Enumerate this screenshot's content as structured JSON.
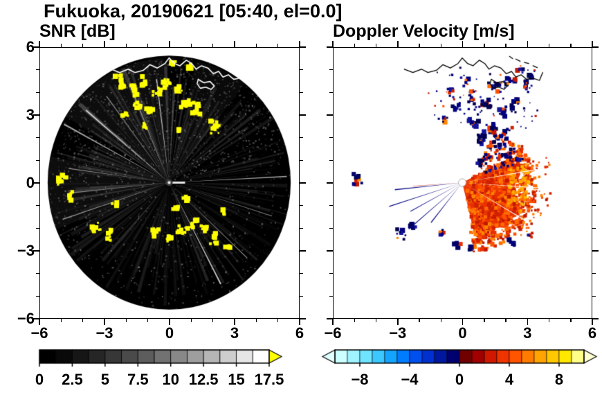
{
  "title": "Fukuoka, 20190621 [05:40, el=0.0]",
  "panels": [
    {
      "title": "SNR [dB]"
    },
    {
      "title": "Doppler Velocity [m/s]"
    }
  ],
  "chart_data": [
    {
      "type": "heatmap",
      "variant": "radar-ppi-scan",
      "title": "SNR [dB]",
      "x_range": [
        -6,
        6
      ],
      "y_range": [
        -6,
        6
      ],
      "x_ticks": [
        -6,
        -3,
        0,
        3,
        6
      ],
      "y_ticks": [
        6,
        3,
        0,
        -3,
        -6
      ],
      "x_tick_labels": [
        "−6",
        "−3",
        "0",
        "3",
        "6"
      ],
      "y_tick_labels": [
        "6",
        "3",
        "0",
        "−3",
        "−6"
      ],
      "minor_tick_step": 1,
      "scan_radius": 5.65,
      "scan_background_color": "#000000",
      "outside_color": "#ffffff",
      "colorbar": {
        "min": 0,
        "max": 17.5,
        "n_segments": 14,
        "tick_values": [
          0,
          2.5,
          5,
          7.5,
          10,
          12.5,
          15,
          17.5
        ],
        "tick_labels": [
          "0",
          "2.5",
          "5",
          "7.5",
          "10",
          "12.5",
          "15",
          "17.5"
        ],
        "colormap": "grayscale",
        "start_color": "#000000",
        "end_color": "#ffffff",
        "over_arrow_color": "#ffff00"
      },
      "bright_sectors_deg": [
        [
          80,
          165,
          85
        ],
        [
          55,
          80,
          45
        ],
        [
          165,
          210,
          55
        ],
        [
          210,
          250,
          20
        ],
        [
          -70,
          -40,
          18
        ],
        [
          -20,
          15,
          20
        ],
        [
          25,
          55,
          25
        ]
      ],
      "bright_ray_angles_deg": [
        -63,
        -44,
        -18,
        3,
        97,
        112,
        126,
        139,
        151,
        172,
        186,
        199
      ],
      "yellow_patch_color": "#ffff00",
      "yellow_clusters": [
        [
          -2.25,
          4.55,
          0.35,
          14
        ],
        [
          -1.6,
          4.15,
          0.3,
          10
        ],
        [
          -1.15,
          4.5,
          0.25,
          8
        ],
        [
          -0.6,
          4.05,
          0.3,
          10
        ],
        [
          -0.15,
          4.4,
          0.3,
          10
        ],
        [
          0.35,
          4.15,
          0.25,
          8
        ],
        [
          -1.5,
          3.45,
          0.3,
          9
        ],
        [
          -0.85,
          3.2,
          0.25,
          7
        ],
        [
          0.8,
          3.55,
          0.3,
          9
        ],
        [
          1.3,
          3.3,
          0.3,
          9
        ],
        [
          -2.05,
          3.05,
          0.2,
          5
        ],
        [
          2.1,
          2.5,
          0.35,
          12
        ],
        [
          0.2,
          5.3,
          0.2,
          5
        ],
        [
          1.0,
          5.15,
          0.15,
          4
        ],
        [
          -1.15,
          2.55,
          0.2,
          5
        ],
        [
          0.4,
          2.3,
          0.15,
          4
        ],
        [
          -4.95,
          0.2,
          0.3,
          10
        ],
        [
          -4.55,
          -0.55,
          0.25,
          6
        ],
        [
          -3.35,
          -2.0,
          0.3,
          9
        ],
        [
          -2.85,
          -2.35,
          0.25,
          7
        ],
        [
          -0.6,
          -2.1,
          0.3,
          9
        ],
        [
          -0.05,
          -2.5,
          0.3,
          9
        ],
        [
          0.55,
          -2.2,
          0.3,
          9
        ],
        [
          1.1,
          -1.8,
          0.3,
          9
        ],
        [
          1.65,
          -1.95,
          0.3,
          8
        ],
        [
          2.1,
          -2.55,
          0.3,
          8
        ],
        [
          0.35,
          -1.15,
          0.2,
          6
        ],
        [
          0.75,
          -0.7,
          0.2,
          5
        ],
        [
          2.75,
          -2.9,
          0.2,
          4
        ],
        [
          -2.5,
          -0.9,
          0.15,
          3
        ],
        [
          2.6,
          -1.35,
          0.15,
          3
        ]
      ],
      "coastline_color": "#ffffff",
      "center_dot": {
        "outer_color": "#3a3a3a",
        "inner_color": "#e0e0e0"
      }
    },
    {
      "type": "heatmap",
      "variant": "radar-ppi-scan",
      "title": "Doppler Velocity [m/s]",
      "x_range": [
        -6,
        6
      ],
      "y_range": [
        -6,
        6
      ],
      "x_ticks": [
        -6,
        -3,
        0,
        3,
        6
      ],
      "y_ticks": [
        6,
        3,
        0,
        -3,
        -6
      ],
      "x_tick_labels": [
        "−6",
        "−3",
        "0",
        "3",
        "6"
      ],
      "y_tick_labels": [],
      "minor_tick_step": 1,
      "background_color": "#ffffff",
      "colorbar": {
        "min": -10,
        "max": 10,
        "tick_values": [
          -8,
          -4,
          0,
          4,
          8
        ],
        "tick_labels": [
          "−8",
          "−4",
          "0",
          "4",
          "8"
        ],
        "segment_colors": [
          "#ccffff",
          "#a0f4ff",
          "#70e4ff",
          "#3cc8ff",
          "#14a4ff",
          "#007cff",
          "#0050f0",
          "#0030d0",
          "#0018a0",
          "#000070",
          "#700000",
          "#a00000",
          "#d01800",
          "#f03400",
          "#ff5400",
          "#ff7c00",
          "#ffa400",
          "#ffc800",
          "#ffe800",
          "#ffff88"
        ],
        "under_arrow_color": "#e0ffff",
        "over_arrow_color": "#ffffd0"
      },
      "approach_color": "#000080",
      "recede_color": "#ee3800",
      "red_core_sector_deg": [
        -76,
        26
      ],
      "red_palette": [
        "#e83000",
        "#ff5000",
        "#d02000",
        "#ff6c00",
        "#c01800",
        "#ff8400"
      ],
      "navy_palette": [
        "#000080",
        "#000068",
        "#14149a",
        "#000050"
      ],
      "navy_clusters": [
        [
          0.9,
          1.95,
          0.35,
          16
        ],
        [
          1.35,
          2.35,
          0.3,
          12
        ],
        [
          0.55,
          2.6,
          0.3,
          10
        ],
        [
          1.75,
          1.65,
          0.25,
          8
        ],
        [
          2.1,
          2.2,
          0.3,
          10
        ],
        [
          -0.9,
          2.9,
          0.25,
          7
        ],
        [
          -0.3,
          3.3,
          0.25,
          7
        ],
        [
          0.45,
          3.8,
          0.3,
          9
        ],
        [
          1.1,
          3.45,
          0.3,
          9
        ],
        [
          1.9,
          3.15,
          0.3,
          8
        ],
        [
          2.45,
          3.6,
          0.3,
          8
        ],
        [
          1.5,
          4.3,
          0.3,
          8
        ],
        [
          2.2,
          4.6,
          0.3,
          8
        ],
        [
          2.9,
          4.3,
          0.25,
          6
        ],
        [
          0.1,
          4.5,
          0.25,
          6
        ],
        [
          -0.55,
          4.15,
          0.2,
          5
        ],
        [
          3.25,
          4.65,
          0.2,
          5
        ],
        [
          2.65,
          5.0,
          0.2,
          5
        ],
        [
          -4.9,
          0.2,
          0.3,
          10
        ],
        [
          -2.9,
          -2.3,
          0.3,
          9
        ],
        [
          -2.35,
          -1.9,
          0.2,
          5
        ],
        [
          -0.2,
          -2.65,
          0.25,
          7
        ],
        [
          0.45,
          -2.95,
          0.25,
          6
        ],
        [
          -0.95,
          -2.25,
          0.2,
          5
        ],
        [
          2.35,
          -2.7,
          0.25,
          6
        ],
        [
          3.15,
          -2.3,
          0.2,
          5
        ]
      ],
      "navy_streaks_deg": [
        186,
        198,
        209,
        221,
        232
      ],
      "white_gap_angles_deg": [
        -4,
        10,
        -31
      ],
      "coastline_color": "#000000",
      "center_dot": {
        "outer_color": "#aaaaaa",
        "inner_color": "#ffffff"
      }
    }
  ],
  "coastline": {
    "main": [
      [
        -2.7,
        5.05
      ],
      [
        -2.3,
        4.9
      ],
      [
        -1.9,
        5.05
      ],
      [
        -1.6,
        4.9
      ],
      [
        -1.2,
        5.0
      ],
      [
        -0.9,
        5.25
      ],
      [
        -0.55,
        5.1
      ],
      [
        -0.2,
        5.3
      ],
      [
        0.0,
        5.55
      ],
      [
        0.25,
        5.3
      ],
      [
        0.5,
        5.2
      ],
      [
        0.8,
        5.45
      ],
      [
        1.05,
        5.3
      ],
      [
        1.25,
        5.05
      ],
      [
        1.5,
        5.2
      ],
      [
        1.8,
        5.1
      ],
      [
        2.05,
        4.85
      ],
      [
        2.3,
        4.95
      ],
      [
        2.5,
        4.7
      ],
      [
        2.75,
        4.8
      ],
      [
        3.0,
        4.6
      ],
      [
        3.3,
        4.65
      ],
      [
        3.6,
        4.55
      ],
      [
        3.75,
        4.9
      ]
    ],
    "harbor": [
      [
        1.35,
        4.6
      ],
      [
        1.6,
        4.45
      ],
      [
        1.9,
        4.5
      ],
      [
        2.1,
        4.3
      ],
      [
        1.95,
        4.15
      ],
      [
        1.7,
        4.25
      ],
      [
        1.45,
        4.2
      ],
      [
        1.3,
        4.4
      ],
      [
        1.35,
        4.6
      ]
    ],
    "dashes": [
      [
        [
          2.5,
          5.5
        ],
        [
          2.7,
          5.4
        ]
      ],
      [
        [
          2.9,
          5.35
        ],
        [
          3.1,
          5.3
        ]
      ],
      [
        [
          2.2,
          5.62
        ],
        [
          2.35,
          5.52
        ]
      ],
      [
        [
          3.3,
          5.2
        ],
        [
          3.5,
          5.12
        ]
      ]
    ]
  }
}
